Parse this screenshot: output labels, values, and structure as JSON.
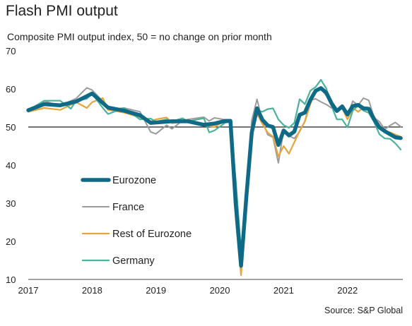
{
  "title": "Flash PMI output",
  "subtitle": "Composite PMI output index, 50 = no change on prior month",
  "source": "Source: S&P Global",
  "chart_data": {
    "type": "line",
    "ylim": [
      10,
      70
    ],
    "y_ticks": [
      10,
      20,
      30,
      40,
      50,
      60,
      70
    ],
    "x_range": [
      2017.0,
      2022.833
    ],
    "x_ticks": [
      "2017",
      "2018",
      "2019",
      "2020",
      "2021",
      "2022"
    ],
    "reference_line": 50,
    "grid": false,
    "legend": "left",
    "series": [
      {
        "name": "Eurozone",
        "color": "#0e6a86",
        "width": 5.5,
        "values": [
          [
            2017.0,
            54.4
          ],
          [
            2017.25,
            56.0
          ],
          [
            2017.5,
            55.7
          ],
          [
            2017.75,
            56.7
          ],
          [
            2017.917,
            58.1
          ],
          [
            2018.0,
            58.8
          ],
          [
            2018.25,
            55.1
          ],
          [
            2018.5,
            54.3
          ],
          [
            2018.75,
            53.1
          ],
          [
            2018.917,
            51.1
          ],
          [
            2019.25,
            51.5
          ],
          [
            2019.5,
            51.5
          ],
          [
            2019.75,
            50.6
          ],
          [
            2019.917,
            50.9
          ],
          [
            2020.083,
            51.6
          ],
          [
            2020.167,
            51.6
          ],
          [
            2020.25,
            29.7
          ],
          [
            2020.333,
            13.6
          ],
          [
            2020.417,
            31.9
          ],
          [
            2020.5,
            48.5
          ],
          [
            2020.583,
            54.9
          ],
          [
            2020.667,
            51.9
          ],
          [
            2020.75,
            50.4
          ],
          [
            2020.833,
            50.0
          ],
          [
            2020.917,
            45.3
          ],
          [
            2021.0,
            49.1
          ],
          [
            2021.083,
            47.8
          ],
          [
            2021.167,
            48.8
          ],
          [
            2021.25,
            53.2
          ],
          [
            2021.333,
            53.8
          ],
          [
            2021.417,
            57.1
          ],
          [
            2021.5,
            59.5
          ],
          [
            2021.583,
            60.2
          ],
          [
            2021.667,
            59.0
          ],
          [
            2021.75,
            56.2
          ],
          [
            2021.833,
            54.2
          ],
          [
            2021.917,
            55.4
          ],
          [
            2022.0,
            53.3
          ],
          [
            2022.083,
            55.5
          ],
          [
            2022.167,
            55.8
          ],
          [
            2022.25,
            54.9
          ],
          [
            2022.333,
            54.8
          ],
          [
            2022.417,
            52.0
          ],
          [
            2022.5,
            49.9
          ],
          [
            2022.583,
            48.9
          ],
          [
            2022.667,
            48.1
          ],
          [
            2022.75,
            47.3
          ],
          [
            2022.833,
            47.1
          ]
        ]
      },
      {
        "name": "France",
        "color": "#9b9b9b",
        "width": 2,
        "values": [
          [
            2017.0,
            54.0
          ],
          [
            2017.25,
            56.8
          ],
          [
            2017.5,
            55.6
          ],
          [
            2017.75,
            57.5
          ],
          [
            2017.917,
            60.3
          ],
          [
            2018.0,
            59.7
          ],
          [
            2018.167,
            56.8
          ],
          [
            2018.25,
            54.6
          ],
          [
            2018.5,
            55.0
          ],
          [
            2018.75,
            54.0
          ],
          [
            2018.917,
            48.7
          ],
          [
            2019.0,
            48.2
          ],
          [
            2019.167,
            50.5
          ],
          [
            2019.25,
            49.5
          ],
          [
            2019.417,
            51.7
          ],
          [
            2019.5,
            52.0
          ],
          [
            2019.75,
            52.6
          ],
          [
            2019.833,
            51.6
          ],
          [
            2019.917,
            52.4
          ],
          [
            2020.083,
            51.9
          ],
          [
            2020.167,
            51.9
          ],
          [
            2020.25,
            28.9
          ],
          [
            2020.333,
            11.1
          ],
          [
            2020.417,
            32.1
          ],
          [
            2020.5,
            51.7
          ],
          [
            2020.583,
            57.3
          ],
          [
            2020.667,
            51.6
          ],
          [
            2020.75,
            48.0
          ],
          [
            2020.833,
            47.3
          ],
          [
            2020.917,
            40.6
          ],
          [
            2021.0,
            49.1
          ],
          [
            2021.083,
            47.7
          ],
          [
            2021.167,
            47.0
          ],
          [
            2021.25,
            48.8
          ],
          [
            2021.333,
            51.6
          ],
          [
            2021.417,
            57.0
          ],
          [
            2021.5,
            57.4
          ],
          [
            2021.583,
            56.6
          ],
          [
            2021.667,
            55.9
          ],
          [
            2021.75,
            55.0
          ],
          [
            2021.833,
            54.7
          ],
          [
            2021.917,
            55.2
          ],
          [
            2022.0,
            53.1
          ],
          [
            2022.083,
            56.8
          ],
          [
            2022.167,
            55.7
          ],
          [
            2022.25,
            57.6
          ],
          [
            2022.333,
            57.0
          ],
          [
            2022.417,
            52.5
          ],
          [
            2022.5,
            51.4
          ],
          [
            2022.583,
            49.4
          ],
          [
            2022.667,
            50.4
          ],
          [
            2022.75,
            51.2
          ],
          [
            2022.833,
            50.1
          ]
        ]
      },
      {
        "name": "Rest of Eurozone",
        "color": "#e8a43c",
        "width": 2.2,
        "values": [
          [
            2017.0,
            54.0
          ],
          [
            2017.25,
            55.0
          ],
          [
            2017.5,
            54.5
          ],
          [
            2017.75,
            56.5
          ],
          [
            2017.917,
            55.0
          ],
          [
            2018.0,
            56.5
          ],
          [
            2018.167,
            57.6
          ],
          [
            2018.25,
            54.5
          ],
          [
            2018.5,
            53.8
          ],
          [
            2018.75,
            52.5
          ],
          [
            2018.917,
            51.5
          ],
          [
            2019.0,
            52.0
          ],
          [
            2019.167,
            52.5
          ],
          [
            2019.25,
            51.0
          ],
          [
            2019.5,
            51.5
          ],
          [
            2019.75,
            50.5
          ],
          [
            2019.917,
            50.0
          ],
          [
            2020.083,
            51.7
          ],
          [
            2020.167,
            51.8
          ],
          [
            2020.25,
            26.0
          ],
          [
            2020.333,
            11.3
          ],
          [
            2020.417,
            30.0
          ],
          [
            2020.5,
            48.0
          ],
          [
            2020.583,
            53.5
          ],
          [
            2020.667,
            50.8
          ],
          [
            2020.75,
            48.5
          ],
          [
            2020.833,
            47.5
          ],
          [
            2020.917,
            42.3
          ],
          [
            2021.0,
            45.0
          ],
          [
            2021.083,
            43.0
          ],
          [
            2021.167,
            46.0
          ],
          [
            2021.25,
            49.0
          ],
          [
            2021.333,
            51.5
          ],
          [
            2021.417,
            56.0
          ],
          [
            2021.5,
            59.5
          ],
          [
            2021.583,
            60.0
          ],
          [
            2021.667,
            58.3
          ],
          [
            2021.75,
            56.6
          ],
          [
            2021.833,
            54.0
          ],
          [
            2021.917,
            55.0
          ],
          [
            2022.0,
            52.0
          ],
          [
            2022.083,
            55.0
          ],
          [
            2022.167,
            54.0
          ],
          [
            2022.25,
            55.2
          ],
          [
            2022.333,
            54.5
          ],
          [
            2022.417,
            52.8
          ],
          [
            2022.5,
            50.5
          ],
          [
            2022.583,
            49.0
          ],
          [
            2022.667,
            48.6
          ],
          [
            2022.75,
            48.0
          ],
          [
            2022.833,
            47.5
          ]
        ]
      },
      {
        "name": "Germany",
        "color": "#4bb39b",
        "width": 2.2,
        "values": [
          [
            2017.0,
            54.4
          ],
          [
            2017.25,
            56.9
          ],
          [
            2017.5,
            56.9
          ],
          [
            2017.667,
            54.8
          ],
          [
            2017.75,
            56.9
          ],
          [
            2017.917,
            57.4
          ],
          [
            2018.0,
            58.8
          ],
          [
            2018.167,
            55.0
          ],
          [
            2018.25,
            53.4
          ],
          [
            2018.5,
            55.0
          ],
          [
            2018.75,
            52.0
          ],
          [
            2018.917,
            52.2
          ],
          [
            2019.0,
            51.4
          ],
          [
            2019.167,
            52.0
          ],
          [
            2019.25,
            51.5
          ],
          [
            2019.417,
            52.3
          ],
          [
            2019.5,
            51.5
          ],
          [
            2019.75,
            52.3
          ],
          [
            2019.833,
            48.6
          ],
          [
            2019.917,
            49.1
          ],
          [
            2020.083,
            51.1
          ],
          [
            2020.167,
            51.4
          ],
          [
            2020.25,
            36.0
          ],
          [
            2020.333,
            17.4
          ],
          [
            2020.417,
            32.3
          ],
          [
            2020.5,
            50.0
          ],
          [
            2020.583,
            54.4
          ],
          [
            2020.667,
            54.0
          ],
          [
            2020.75,
            54.7
          ],
          [
            2020.833,
            54.9
          ],
          [
            2020.917,
            52.0
          ],
          [
            2021.0,
            50.5
          ],
          [
            2021.083,
            49.8
          ],
          [
            2021.167,
            51.1
          ],
          [
            2021.25,
            57.3
          ],
          [
            2021.333,
            56.0
          ],
          [
            2021.417,
            59.5
          ],
          [
            2021.5,
            60.5
          ],
          [
            2021.583,
            62.4
          ],
          [
            2021.667,
            60.1
          ],
          [
            2021.75,
            55.5
          ],
          [
            2021.833,
            52.0
          ],
          [
            2021.917,
            52.0
          ],
          [
            2022.0,
            49.9
          ],
          [
            2022.083,
            54.3
          ],
          [
            2022.167,
            55.6
          ],
          [
            2022.25,
            54.3
          ],
          [
            2022.333,
            53.7
          ],
          [
            2022.417,
            51.3
          ],
          [
            2022.5,
            48.1
          ],
          [
            2022.583,
            47.0
          ],
          [
            2022.667,
            46.9
          ],
          [
            2022.75,
            45.7
          ],
          [
            2022.833,
            44.1
          ]
        ]
      }
    ]
  }
}
